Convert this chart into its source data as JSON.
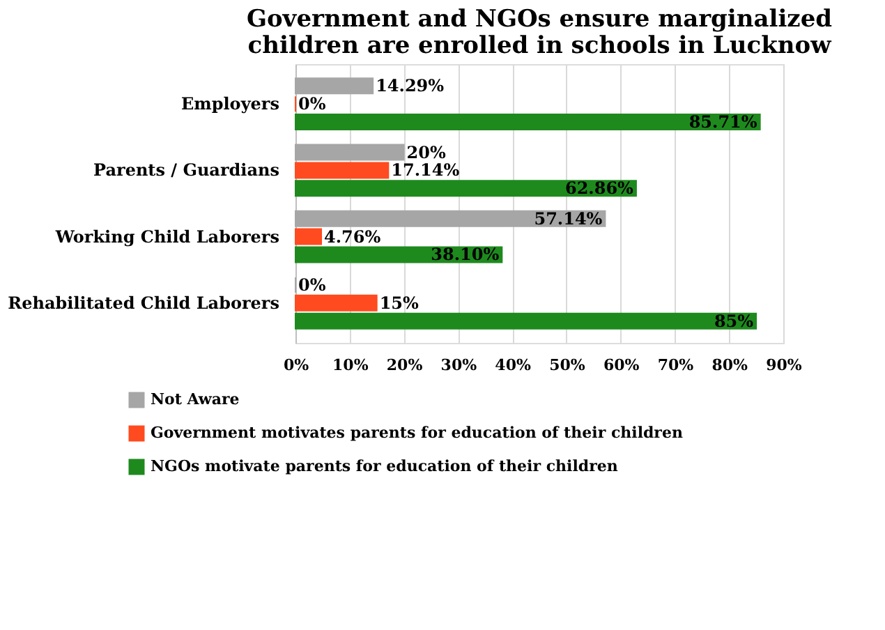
{
  "chart_data": {
    "type": "bar",
    "orientation": "horizontal",
    "title": "Government and NGOs ensure marginalized children are enrolled in schools in Lucknow",
    "categories": [
      "Employers",
      "Parents / Guardians",
      "Working Child Laborers",
      "Rehabilitated Child Laborers"
    ],
    "series": [
      {
        "name": "Not Aware",
        "color": "#a6a6a6",
        "values": [
          14.29,
          20,
          57.14,
          0
        ],
        "value_labels": [
          "14.29%",
          "20%",
          "57.14%",
          "0%"
        ]
      },
      {
        "name": "Government motivates parents for education of their children",
        "color": "#ff4b1f",
        "values": [
          0,
          17.14,
          4.76,
          15
        ],
        "value_labels": [
          "0%",
          "17.14%",
          "4.76%",
          "15%"
        ]
      },
      {
        "name": "NGOs  motivate parents for education of their children",
        "color": "#1e8a1e",
        "values": [
          85.71,
          62.86,
          38.1,
          85
        ],
        "value_labels": [
          "85.71%",
          "62.86%",
          "38.10%",
          "85%"
        ]
      }
    ],
    "xlim": [
      0,
      90
    ],
    "xticks": [
      {
        "value": 0,
        "label": "0%"
      },
      {
        "value": 10,
        "label": "10%"
      },
      {
        "value": 20,
        "label": "20%"
      },
      {
        "value": 30,
        "label": "30%"
      },
      {
        "value": 40,
        "label": "40%"
      },
      {
        "value": 50,
        "label": "50%"
      },
      {
        "value": 60,
        "label": "60%"
      },
      {
        "value": 70,
        "label": "70%"
      },
      {
        "value": 80,
        "label": "80%"
      },
      {
        "value": 90,
        "label": "90%"
      }
    ],
    "grid": "x",
    "legend": "bottom"
  }
}
